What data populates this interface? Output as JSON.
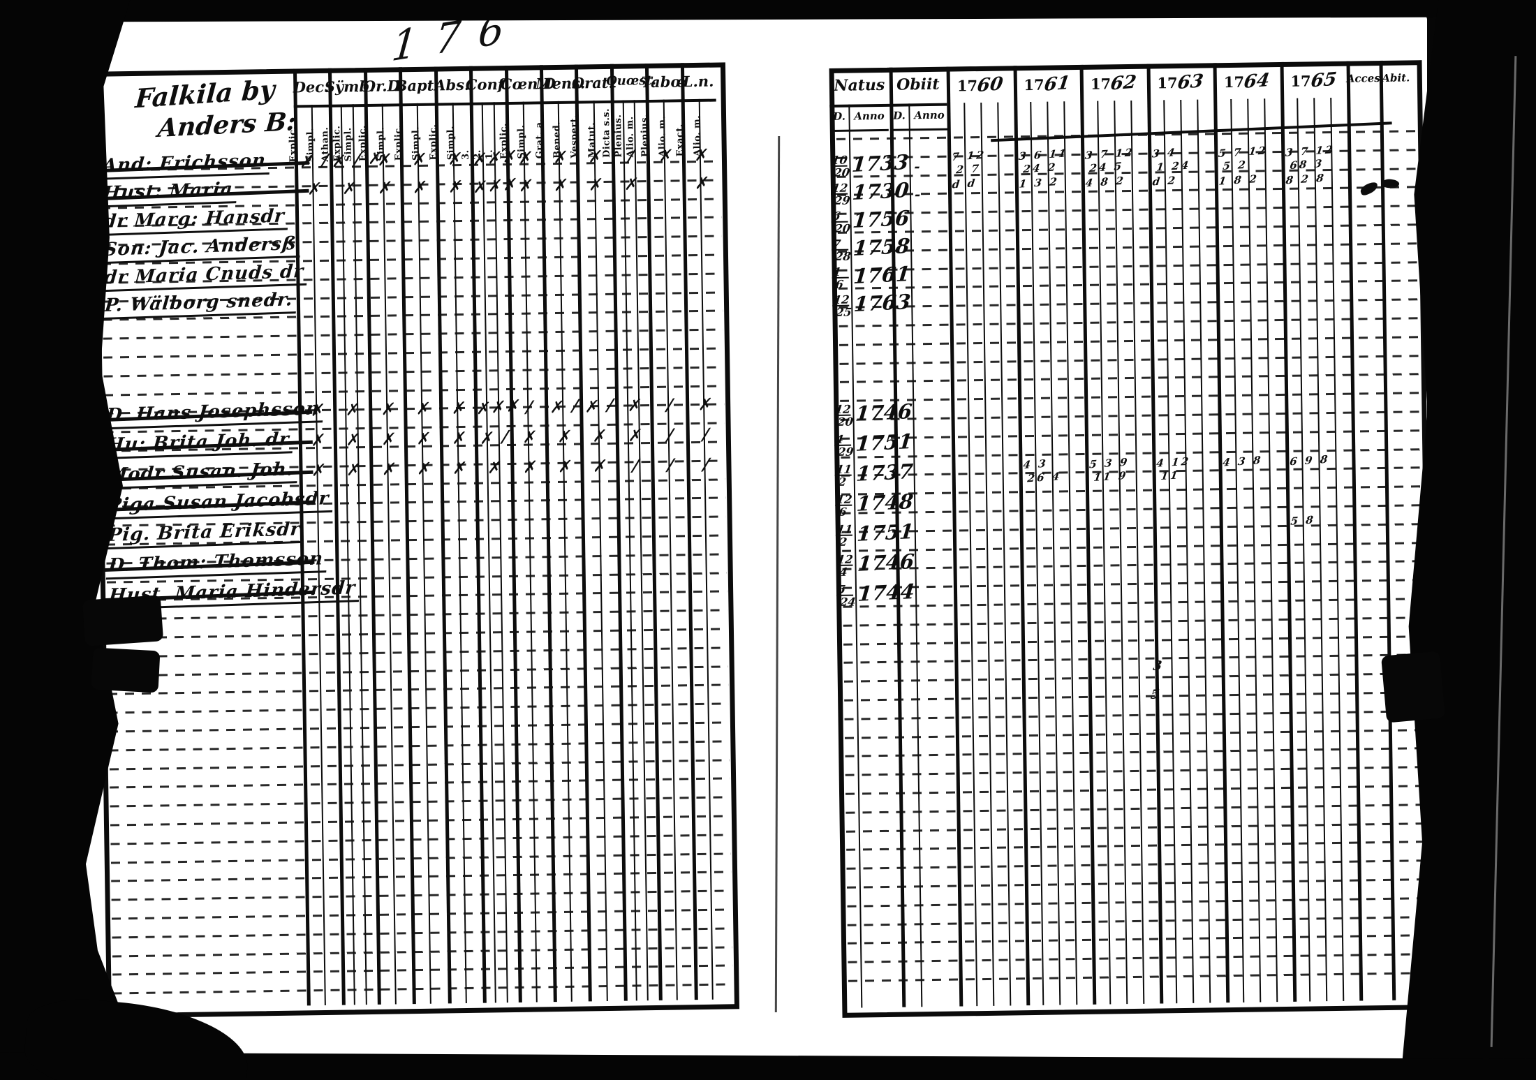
{
  "scan": {
    "top_annotation": "176",
    "left_page": {
      "heading": [
        "Falkila by",
        "Anders B:"
      ],
      "columns": [
        {
          "label": "Dec.",
          "subs": [
            "Explic.",
            "Simpl."
          ]
        },
        {
          "label": "Sÿmb.",
          "subs": [
            "Athan.",
            "Explic.",
            "Simpl."
          ]
        },
        {
          "label": "Or.D",
          "subs": [
            "Explic.",
            "Simpl."
          ]
        },
        {
          "label": "Bapt.",
          "subs": [
            "Explic.",
            "Simpl."
          ]
        },
        {
          "label": "Abs.",
          "subs": [
            "Explic.",
            "Simpl."
          ]
        },
        {
          "label": "Conf.",
          "subs": [
            "3.",
            "2.",
            "1."
          ]
        },
        {
          "label": "Cœn.D",
          "subs": [
            "Explic.",
            "Simpl."
          ]
        },
        {
          "label": "Mens.",
          "subs": [
            "Grat. a.",
            "Bened."
          ]
        },
        {
          "label": "Orat.",
          "subs": [
            "Vespert.",
            "Matut."
          ]
        },
        {
          "label": "Quœst.",
          "subs": [
            "Dicta s.s.",
            "Plenius.",
            "Alio. m."
          ]
        },
        {
          "label": "Tabœ",
          "subs": [
            "Plenius.",
            "Alio. m."
          ]
        },
        {
          "label": "L.n.",
          "subs": [
            "Exact.",
            "Alio. m."
          ]
        }
      ],
      "entries": [
        {
          "name": "And: Erichsson",
          "struck": true,
          "marks": [
            "✗ ∕",
            "✗ ∕ ✗",
            "✗",
            "✗",
            "✗",
            "✗✗✗",
            "✗",
            "✗",
            "✗",
            "∕",
            "✗",
            "✗"
          ]
        },
        {
          "name": "Hust: Maria",
          "struck": true,
          "marks": [
            "✗",
            "✗",
            "✗",
            "✗",
            "✗",
            "✗✗✗",
            "✗",
            "✗",
            "✗",
            "✗",
            "",
            "✗"
          ]
        },
        {
          "name": "dr Marg: Hansdr",
          "struck": false,
          "marks": [
            "",
            "",
            "",
            "",
            "",
            "",
            "",
            "",
            "",
            "",
            "",
            ""
          ]
        },
        {
          "name": "Son: Jac. Andersß",
          "struck": false,
          "marks": [
            "",
            "",
            "",
            "",
            "",
            "",
            "",
            "",
            "",
            "",
            "",
            ""
          ]
        },
        {
          "name": "dr Maria Cnuds dr",
          "struck": false,
          "marks": [
            "",
            "",
            "",
            "",
            "",
            "",
            "",
            "",
            "",
            "",
            "",
            ""
          ]
        },
        {
          "name": "P. Wälborg snedr.",
          "struck": false,
          "marks": [
            "",
            "",
            "",
            "",
            "",
            "",
            "",
            "",
            "",
            "",
            "",
            ""
          ]
        },
        {
          "name": "D. Hans Josephsson",
          "struck": true,
          "marks": [
            "✗",
            "✗",
            "✗",
            "✗",
            "✗",
            "✗✗✗",
            "∕",
            "✗ ∕",
            "✗ ∕",
            "✗",
            "∕",
            "✗"
          ]
        },
        {
          "name": "Hu: Brita Joh. dr",
          "struck": true,
          "marks": [
            "✗",
            "✗",
            "✗",
            "✗",
            "✗",
            "✗ ∕",
            "✗",
            "✗",
            "✗",
            "✗",
            "∕",
            "∕"
          ]
        },
        {
          "name": "Modr Susan. Joh.",
          "struck": true,
          "marks": [
            "✗",
            "✗",
            "✗",
            "✗",
            "✗",
            "✗",
            "✗",
            "✗",
            "✗",
            "∕",
            "∕",
            "∕"
          ]
        },
        {
          "name": "Piga Susan Jacobsdr",
          "struck": true,
          "marks": [
            "",
            "",
            "",
            "",
            "",
            "",
            "",
            "",
            "",
            "",
            "",
            ""
          ]
        },
        {
          "name": "Pig. Brita Eriksdr",
          "struck": false,
          "marks": [
            "",
            "",
            "",
            "",
            "",
            "",
            "",
            "",
            "",
            "",
            "",
            ""
          ]
        },
        {
          "name": "D. Thom: Thomsson",
          "struck": true,
          "marks": [
            "",
            "",
            "",
            "",
            "",
            "",
            "",
            "",
            "",
            "",
            "",
            ""
          ]
        },
        {
          "name": "Hust. Maria Hindersdr",
          "struck": true,
          "marks": [
            "",
            "",
            "",
            "",
            "",
            "",
            "",
            "",
            "",
            "",
            "",
            ""
          ]
        }
      ]
    },
    "right_page": {
      "natus_label": "Natus",
      "obiit_label": "Obiit",
      "sub_d": "D.",
      "sub_anno": "Anno",
      "year_prefix": "17",
      "years": [
        "60",
        "61",
        "62",
        "63",
        "64",
        "65"
      ],
      "acces_label": "Acces",
      "abit_label": "Abit.",
      "entries": [
        {
          "d_top": "10",
          "d_bot": "20",
          "anno": "1733",
          "obiit": "-",
          "year_marks": {
            "0": "7 12|2 7",
            "1": "3 6 11|24 2",
            "2": "3 7 12|24 5",
            "3": "3 4|1 24",
            "4": "5 7 12|5 2",
            "5": "3 7 12|68 3"
          }
        },
        {
          "d_top": "12",
          "d_bot": "29",
          "anno": "1730",
          "obiit": "-",
          "year_marks": {
            "0": "d d",
            "1": "1 3 2",
            "2": "4 8 2",
            "3": "d 2",
            "4": "1 8 2",
            "5": "8 2 8"
          }
        },
        {
          "d_top": "6",
          "d_bot": "20",
          "anno": "1756",
          "obiit": "",
          "year_marks": {}
        },
        {
          "d_top": "7",
          "d_bot": "28",
          "anno": "1758",
          "obiit": "",
          "year_marks": {}
        },
        {
          "d_top": "1",
          "d_bot": "6",
          "anno": "1761",
          "obiit": "",
          "year_marks": {}
        },
        {
          "d_top": "12",
          "d_bot": "25",
          "anno": "1763",
          "obiit": "",
          "year_marks": {}
        },
        {
          "d_top": "12",
          "d_bot": "20",
          "anno": "1746",
          "obiit": "",
          "year_marks": {}
        },
        {
          "d_top": "4",
          "d_bot": "29",
          "anno": "1751",
          "obiit": "",
          "year_marks": {}
        },
        {
          "d_top": "11",
          "d_bot": "2",
          "anno": "1737",
          "obiit": "",
          "year_marks": {
            "1": "4 3|26 4",
            "2": "5 3 9|11 9",
            "3": "4 12|11",
            "4": "4 3 8",
            "5": "6 9 8"
          }
        },
        {
          "d_top": "12",
          "d_bot": "6",
          "anno": "1748",
          "obiit": "",
          "year_marks": {}
        },
        {
          "d_top": "11",
          "d_bot": "2",
          "anno": "1751",
          "obiit": "",
          "year_marks": {
            "5": "5 8"
          }
        },
        {
          "d_top": "12",
          "d_bot": "4",
          "anno": "1746",
          "obiit": "",
          "year_marks": {}
        },
        {
          "d_top": "5",
          "d_bot": "24",
          "anno": "1744",
          "obiit": "",
          "year_marks": {}
        }
      ],
      "stray_marks": [
        "3",
        "5"
      ]
    }
  }
}
